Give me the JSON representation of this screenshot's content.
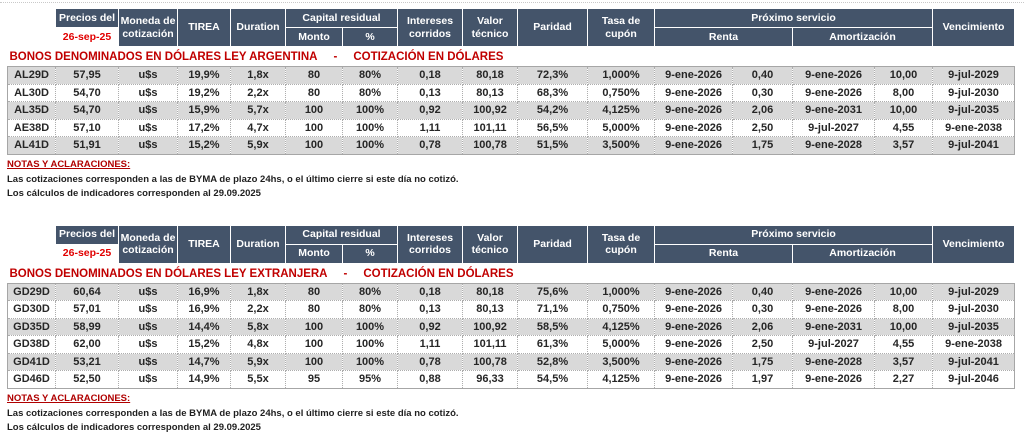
{
  "colors": {
    "header_bg": "#44546A",
    "header_text": "#FFFFFF",
    "section_title_red": "#C00000",
    "date_red": "#E10000",
    "row_stripe_gray": "#D9D9D9",
    "notes_heading_red": "#B00000"
  },
  "table_header": {
    "precios_label": "Precios del",
    "precios_date": "26-sep-25",
    "moneda": "Moneda de cotización",
    "tirea": "TIREA",
    "duration": "Duration",
    "capital_residual": "Capital residual",
    "monto": "Monto",
    "pct": "%",
    "intereses": "Intereses corridos",
    "valor_tecnico": "Valor técnico",
    "paridad": "Paridad",
    "tasa_cupon": "Tasa de cupón",
    "proximo_servicio": "Próximo servicio",
    "renta": "Renta",
    "amortizacion": "Amortización",
    "vencimiento": "Vencimiento"
  },
  "sections": [
    {
      "title_main": "BONOS DENOMINADOS EN DÓLARES LEY ARGENTINA",
      "title_dash": "-",
      "title_sub": "COTIZACIÓN EN DÓLARES",
      "rows": [
        [
          "AL29D",
          "57,95",
          "u$s",
          "19,9%",
          "1,8x",
          "80",
          "80%",
          "0,18",
          "80,18",
          "72,3%",
          "1,000%",
          "9-ene-2026",
          "0,40",
          "9-ene-2026",
          "10,00",
          "9-jul-2029"
        ],
        [
          "AL30D",
          "54,70",
          "u$s",
          "19,2%",
          "2,2x",
          "80",
          "80%",
          "0,13",
          "80,13",
          "68,3%",
          "0,750%",
          "9-ene-2026",
          "0,30",
          "9-ene-2026",
          "8,00",
          "9-jul-2030"
        ],
        [
          "AL35D",
          "54,70",
          "u$s",
          "15,9%",
          "5,7x",
          "100",
          "100%",
          "0,92",
          "100,92",
          "54,2%",
          "4,125%",
          "9-ene-2026",
          "2,06",
          "9-ene-2031",
          "10,00",
          "9-jul-2035"
        ],
        [
          "AE38D",
          "57,10",
          "u$s",
          "17,2%",
          "4,7x",
          "100",
          "100%",
          "1,11",
          "101,11",
          "56,5%",
          "5,000%",
          "9-ene-2026",
          "2,50",
          "9-jul-2027",
          "4,55",
          "9-ene-2038"
        ],
        [
          "AL41D",
          "51,91",
          "u$s",
          "15,2%",
          "5,9x",
          "100",
          "100%",
          "0,78",
          "100,78",
          "51,5%",
          "3,500%",
          "9-ene-2026",
          "1,75",
          "9-ene-2028",
          "3,57",
          "9-jul-2041"
        ]
      ]
    },
    {
      "title_main": "BONOS DENOMINADOS EN DÓLARES LEY EXTRANJERA",
      "title_dash": "-",
      "title_sub": "COTIZACIÓN EN DÓLARES",
      "rows": [
        [
          "GD29D",
          "60,64",
          "u$s",
          "16,9%",
          "1,8x",
          "80",
          "80%",
          "0,18",
          "80,18",
          "75,6%",
          "1,000%",
          "9-ene-2026",
          "0,40",
          "9-ene-2026",
          "10,00",
          "9-jul-2029"
        ],
        [
          "GD30D",
          "57,01",
          "u$s",
          "16,9%",
          "2,2x",
          "80",
          "80%",
          "0,13",
          "80,13",
          "71,1%",
          "0,750%",
          "9-ene-2026",
          "0,30",
          "9-ene-2026",
          "8,00",
          "9-jul-2030"
        ],
        [
          "GD35D",
          "58,99",
          "u$s",
          "14,4%",
          "5,8x",
          "100",
          "100%",
          "0,92",
          "100,92",
          "58,5%",
          "4,125%",
          "9-ene-2026",
          "2,06",
          "9-ene-2031",
          "10,00",
          "9-jul-2035"
        ],
        [
          "GD38D",
          "62,00",
          "u$s",
          "15,2%",
          "4,8x",
          "100",
          "100%",
          "1,11",
          "101,11",
          "61,3%",
          "5,000%",
          "9-ene-2026",
          "2,50",
          "9-jul-2027",
          "4,55",
          "9-ene-2038"
        ],
        [
          "GD41D",
          "53,21",
          "u$s",
          "14,7%",
          "5,9x",
          "100",
          "100%",
          "0,78",
          "100,78",
          "52,8%",
          "3,500%",
          "9-ene-2026",
          "1,75",
          "9-ene-2028",
          "3,57",
          "9-jul-2041"
        ],
        [
          "GD46D",
          "52,50",
          "u$s",
          "14,9%",
          "5,5x",
          "95",
          "95%",
          "0,88",
          "96,33",
          "54,5%",
          "4,125%",
          "9-ene-2026",
          "1,97",
          "9-ene-2026",
          "2,27",
          "9-jul-2046"
        ]
      ]
    }
  ],
  "notes": {
    "heading": "NOTAS Y ACLARACIONES:",
    "line1": "Las cotizaciones corresponden a las de BYMA de plazo 24hs, o el último cierre si este día no cotizó.",
    "line2": "Los cálculos de indicadores corresponden al 29.09.2025"
  }
}
